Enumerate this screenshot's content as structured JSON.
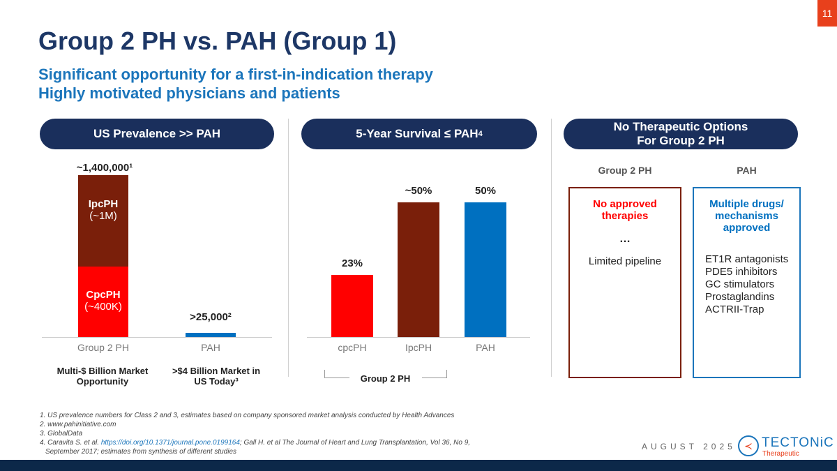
{
  "page_number": "11",
  "title": "Group 2 PH vs. PAH (Group 1)",
  "subtitles": [
    "Significant opportunity for a first-in-indication therapy",
    "Highly motivated physicians and patients"
  ],
  "pills": [
    "US Prevalence >> PAH",
    "5-Year Survival ≤ PAH⁴",
    "No Therapeutic Options\nFor Group 2 PH"
  ],
  "colors": {
    "red": "#ff0000",
    "dark_red": "#7a1f0a",
    "blue": "#0070c0",
    "navy": "#1a2f5c"
  },
  "chart_data": [
    {
      "type": "bar",
      "stacked": true,
      "categories": [
        "Group 2 PH",
        "PAH"
      ],
      "series": [
        {
          "name": "CpcPH",
          "sublabel": "(~400K)",
          "values": [
            400000,
            0
          ]
        },
        {
          "name": "IpcPH",
          "sublabel": "(~1M)",
          "values": [
            1000000,
            0
          ]
        },
        {
          "values": [
            0,
            25000
          ]
        }
      ],
      "data_labels": [
        "~1,400,000¹",
        ">25,000²"
      ],
      "captions": [
        "Multi-$ Billion Market Opportunity",
        ">$4 Billion Market in US Today³"
      ]
    },
    {
      "type": "bar",
      "categories": [
        "cpcPH",
        "IpcPH",
        "PAH"
      ],
      "values": [
        23,
        50,
        50
      ],
      "data_labels": [
        "23%",
        "~50%",
        "50%"
      ],
      "group_label": "Group 2 PH",
      "unit": "%"
    }
  ],
  "therapy": {
    "group2": {
      "header": "Group 2 PH",
      "title": "No approved therapies",
      "ellipsis": "…",
      "note": "Limited pipeline"
    },
    "pah": {
      "header": "PAH",
      "title": "Multiple drugs/ mechanisms approved",
      "items": [
        "ET1R antagonists",
        "PDE5 inhibitors",
        "GC stimulators",
        "Prostaglandins",
        "ACTRII-Trap"
      ]
    }
  },
  "footnotes": {
    "f1": "1. US prevalence numbers for Class 2 and 3, estimates based on company sponsored market analysis conducted by Health Advances",
    "f2": "2. www.pahinitiative.com",
    "f3": "3. GlobalData",
    "f4a": "4. Caravita S. et al. ",
    "f4link": "https://doi.org/10.1371/journal.pone.0199164",
    "f4b": "; Gall H. et al The Journal of Heart and Lung Transplantation, Vol 36, No 9,",
    "f4c": "September 2017; estimates from synthesis of different studies"
  },
  "date": "AUGUST 2025",
  "logo": {
    "name": "TECTONiC",
    "tagline": "Therapeutic"
  }
}
